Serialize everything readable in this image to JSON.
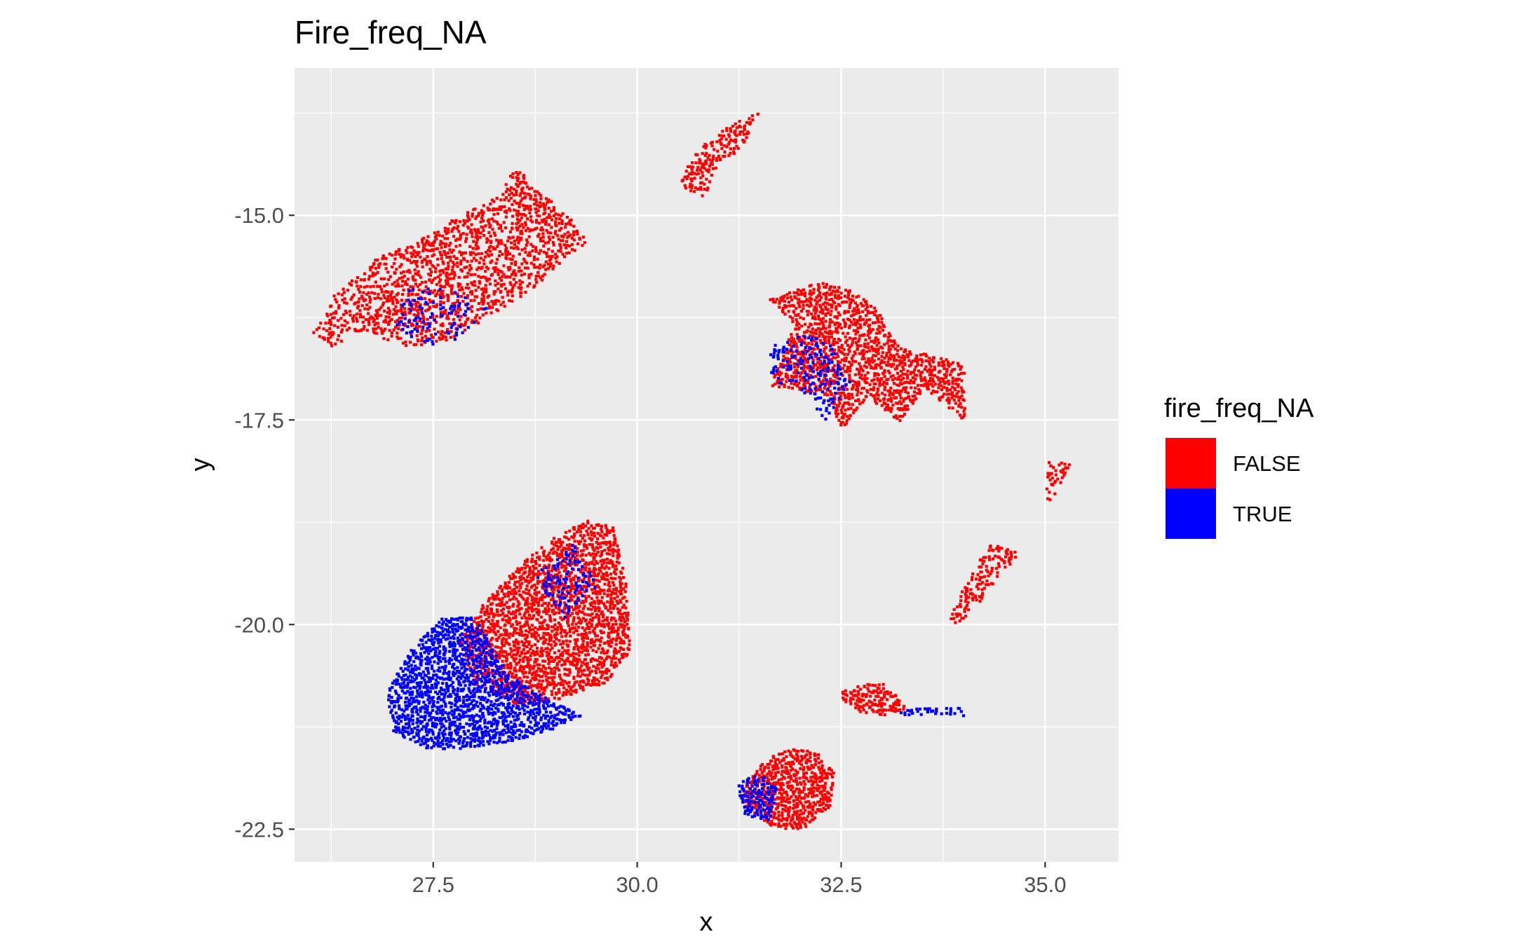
{
  "chart_data": {
    "type": "scatter",
    "title": "Fire_freq_NA",
    "xlabel": "x",
    "ylabel": "y",
    "xlim": [
      25.8,
      35.9
    ],
    "ylim": [
      -22.9,
      -13.2
    ],
    "x_ticks": [
      27.5,
      30.0,
      32.5,
      35.0
    ],
    "x_tick_labels": [
      "27.5",
      "30.0",
      "32.5",
      "35.0"
    ],
    "y_ticks": [
      -15.0,
      -17.5,
      -20.0,
      -22.5
    ],
    "y_tick_labels": [
      "-15.0",
      "-17.5",
      "-20.0",
      "-22.5"
    ],
    "grid": true,
    "panel_background": "#ebebeb",
    "grid_color": "#ffffff",
    "legend": {
      "title": "fire_freq_NA",
      "position": "right",
      "entries": [
        {
          "label": "FALSE",
          "color": "#ff0000"
        },
        {
          "label": "TRUE",
          "color": "#0000ff"
        }
      ]
    },
    "series": [
      {
        "label": "FALSE",
        "color": "#ff0000",
        "regions": [
          {
            "polygon": [
              [
                26.0,
                -16.4
              ],
              [
                26.3,
                -15.9
              ],
              [
                26.8,
                -15.5
              ],
              [
                27.3,
                -15.3
              ],
              [
                27.7,
                -15.05
              ],
              [
                28.2,
                -14.8
              ],
              [
                28.5,
                -14.4
              ],
              [
                28.8,
                -14.7
              ],
              [
                29.1,
                -14.95
              ],
              [
                29.4,
                -15.3
              ],
              [
                29.0,
                -15.6
              ],
              [
                28.7,
                -15.9
              ],
              [
                28.2,
                -16.2
              ],
              [
                27.7,
                -16.5
              ],
              [
                27.2,
                -16.6
              ],
              [
                26.6,
                -16.4
              ],
              [
                26.2,
                -16.6
              ]
            ],
            "density": 0.5
          },
          {
            "polygon": [
              [
                30.5,
                -14.6
              ],
              [
                30.7,
                -14.2
              ],
              [
                31.1,
                -13.9
              ],
              [
                31.5,
                -13.7
              ],
              [
                31.3,
                -14.1
              ],
              [
                30.9,
                -14.5
              ],
              [
                30.8,
                -14.8
              ]
            ],
            "density": 0.6
          },
          {
            "polygon": [
              [
                31.6,
                -16.0
              ],
              [
                31.9,
                -15.9
              ],
              [
                32.2,
                -15.8
              ],
              [
                32.6,
                -15.9
              ],
              [
                32.9,
                -16.1
              ],
              [
                33.2,
                -16.6
              ],
              [
                33.6,
                -16.7
              ],
              [
                34.0,
                -16.8
              ],
              [
                34.0,
                -17.5
              ],
              [
                33.5,
                -17.1
              ],
              [
                33.2,
                -17.5
              ],
              [
                32.8,
                -17.2
              ],
              [
                32.5,
                -17.6
              ],
              [
                32.3,
                -17.2
              ],
              [
                31.9,
                -17.1
              ],
              [
                31.6,
                -17.1
              ],
              [
                31.8,
                -16.6
              ],
              [
                31.9,
                -16.3
              ]
            ],
            "density": 0.7
          },
          {
            "polygon": [
              [
                33.8,
                -19.95
              ],
              [
                34.0,
                -19.5
              ],
              [
                34.3,
                -19.0
              ],
              [
                34.7,
                -19.1
              ],
              [
                34.4,
                -19.4
              ],
              [
                34.2,
                -19.7
              ],
              [
                33.9,
                -20.0
              ]
            ],
            "density": 0.55
          },
          {
            "polygon": [
              [
                35.0,
                -18.0
              ],
              [
                35.3,
                -18.0
              ],
              [
                35.1,
                -18.4
              ],
              [
                35.0,
                -18.5
              ]
            ],
            "density": 0.5
          },
          {
            "polygon": [
              [
                32.5,
                -20.8
              ],
              [
                32.8,
                -20.7
              ],
              [
                33.0,
                -20.7
              ],
              [
                33.3,
                -21.0
              ],
              [
                33.0,
                -21.1
              ],
              [
                32.7,
                -21.05
              ],
              [
                32.5,
                -20.9
              ]
            ],
            "density": 0.8
          },
          {
            "polygon": [
              [
                31.3,
                -21.9
              ],
              [
                31.6,
                -21.6
              ],
              [
                31.9,
                -21.5
              ],
              [
                32.2,
                -21.55
              ],
              [
                32.4,
                -21.8
              ],
              [
                32.35,
                -22.2
              ],
              [
                32.0,
                -22.5
              ],
              [
                31.6,
                -22.45
              ],
              [
                31.3,
                -22.2
              ]
            ],
            "density": 0.85
          },
          {
            "polygon": [
              [
                27.8,
                -20.2
              ],
              [
                28.1,
                -19.7
              ],
              [
                28.6,
                -19.2
              ],
              [
                29.0,
                -18.9
              ],
              [
                29.4,
                -18.7
              ],
              [
                29.7,
                -18.8
              ],
              [
                29.85,
                -19.5
              ],
              [
                29.9,
                -20.3
              ],
              [
                29.6,
                -20.7
              ],
              [
                29.0,
                -20.9
              ],
              [
                28.6,
                -21.0
              ],
              [
                28.0,
                -20.7
              ]
            ],
            "density": 0.75
          }
        ]
      },
      {
        "label": "TRUE",
        "color": "#0000ff",
        "regions": [
          {
            "polygon": [
              [
                27.2,
                -15.85
              ],
              [
                27.7,
                -15.9
              ],
              [
                28.2,
                -16.1
              ],
              [
                27.8,
                -16.5
              ],
              [
                27.3,
                -16.6
              ],
              [
                27.0,
                -16.3
              ]
            ],
            "density": 0.2
          },
          {
            "polygon": [
              [
                31.6,
                -16.6
              ],
              [
                32.0,
                -16.4
              ],
              [
                32.4,
                -16.6
              ],
              [
                32.6,
                -17.0
              ],
              [
                32.3,
                -17.5
              ],
              [
                31.9,
                -17.0
              ],
              [
                31.6,
                -17.1
              ]
            ],
            "density": 0.35
          },
          {
            "polygon": [
              [
                31.2,
                -21.9
              ],
              [
                31.5,
                -21.8
              ],
              [
                31.7,
                -22.0
              ],
              [
                31.6,
                -22.4
              ],
              [
                31.3,
                -22.3
              ]
            ],
            "density": 0.7
          },
          {
            "polygon": [
              [
                26.9,
                -20.8
              ],
              [
                27.2,
                -20.3
              ],
              [
                27.6,
                -19.9
              ],
              [
                28.0,
                -19.9
              ],
              [
                28.4,
                -20.6
              ],
              [
                28.9,
                -20.9
              ],
              [
                29.3,
                -21.1
              ],
              [
                29.0,
                -21.25
              ],
              [
                28.5,
                -21.4
              ],
              [
                27.9,
                -21.5
              ],
              [
                27.4,
                -21.5
              ],
              [
                27.0,
                -21.3
              ]
            ],
            "density": 0.8
          },
          {
            "polygon": [
              [
                28.7,
                -19.4
              ],
              [
                29.2,
                -19.0
              ],
              [
                29.5,
                -19.5
              ],
              [
                29.1,
                -19.9
              ]
            ],
            "density": 0.3
          },
          {
            "polygon": [
              [
                33.2,
                -21.0
              ],
              [
                34.0,
                -21.0
              ],
              [
                34.0,
                -21.1
              ],
              [
                33.2,
                -21.1
              ]
            ],
            "density": 0.5
          }
        ]
      }
    ]
  }
}
